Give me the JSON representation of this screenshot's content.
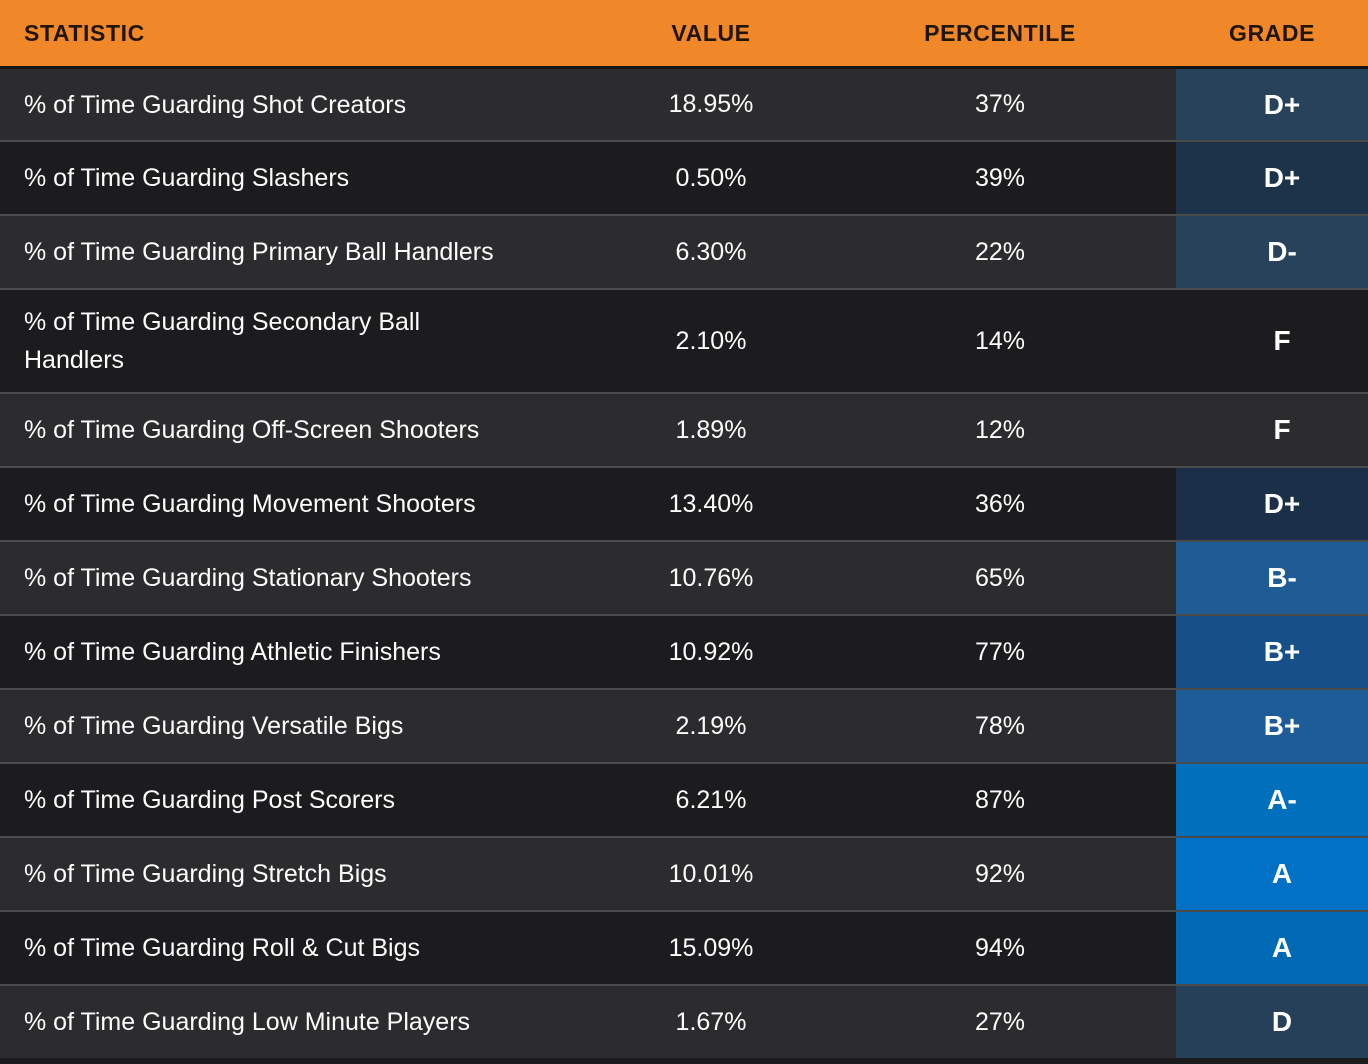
{
  "colors": {
    "header_bg": "#f0882a",
    "header_text": "#211505",
    "row_light": "#2c2c2e",
    "row_dark": "#1c1c1e",
    "row_divider": "#4a4a4a",
    "body_text": "#fdfdfd",
    "grade_a_blue": "#0070bd",
    "grade_b_blue": "#1e5c98",
    "grade_d_slate": "#27425a"
  },
  "chart_data": {
    "type": "table",
    "columns": [
      "STATISTIC",
      "VALUE",
      "PERCENTILE",
      "GRADE"
    ],
    "rows": [
      {
        "stat": "% of Time Guarding Shot Creators",
        "value": "18.95%",
        "percentile": "37%",
        "grade": "D+",
        "grade_bg": "#27425a"
      },
      {
        "stat": "% of Time Guarding Slashers",
        "value": "0.50%",
        "percentile": "39%",
        "grade": "D+",
        "grade_bg": "#1d3349"
      },
      {
        "stat": "% of Time Guarding Primary Ball Handlers",
        "value": "6.30%",
        "percentile": "22%",
        "grade": "D-",
        "grade_bg": "#27425a"
      },
      {
        "stat": "% of Time Guarding Secondary Ball\nHandlers",
        "value": "2.10%",
        "percentile": "14%",
        "grade": "F",
        "grade_bg": "#1c1c1e"
      },
      {
        "stat": "% of Time Guarding Off-Screen Shooters",
        "value": "1.89%",
        "percentile": "12%",
        "grade": "F",
        "grade_bg": "#2c2c2e"
      },
      {
        "stat": "% of Time Guarding Movement Shooters",
        "value": "13.40%",
        "percentile": "36%",
        "grade": "D+",
        "grade_bg": "#1b3048"
      },
      {
        "stat": "% of Time Guarding Stationary Shooters",
        "value": "10.76%",
        "percentile": "65%",
        "grade": "B-",
        "grade_bg": "#1f5b95"
      },
      {
        "stat": "% of Time Guarding Athletic Finishers",
        "value": "10.92%",
        "percentile": "77%",
        "grade": "B+",
        "grade_bg": "#175089"
      },
      {
        "stat": "% of Time Guarding Versatile Bigs",
        "value": "2.19%",
        "percentile": "78%",
        "grade": "B+",
        "grade_bg": "#1e5c98"
      },
      {
        "stat": "% of Time Guarding Post Scorers",
        "value": "6.21%",
        "percentile": "87%",
        "grade": "A-",
        "grade_bg": "#0070bd"
      },
      {
        "stat": "% of Time Guarding Stretch Bigs",
        "value": "10.01%",
        "percentile": "92%",
        "grade": "A",
        "grade_bg": "#0071c4"
      },
      {
        "stat": "% of Time Guarding Roll & Cut Bigs",
        "value": "15.09%",
        "percentile": "94%",
        "grade": "A",
        "grade_bg": "#0069b4"
      },
      {
        "stat": "% of Time Guarding Low Minute Players",
        "value": "1.67%",
        "percentile": "27%",
        "grade": "D",
        "grade_bg": "#26405a"
      }
    ]
  }
}
